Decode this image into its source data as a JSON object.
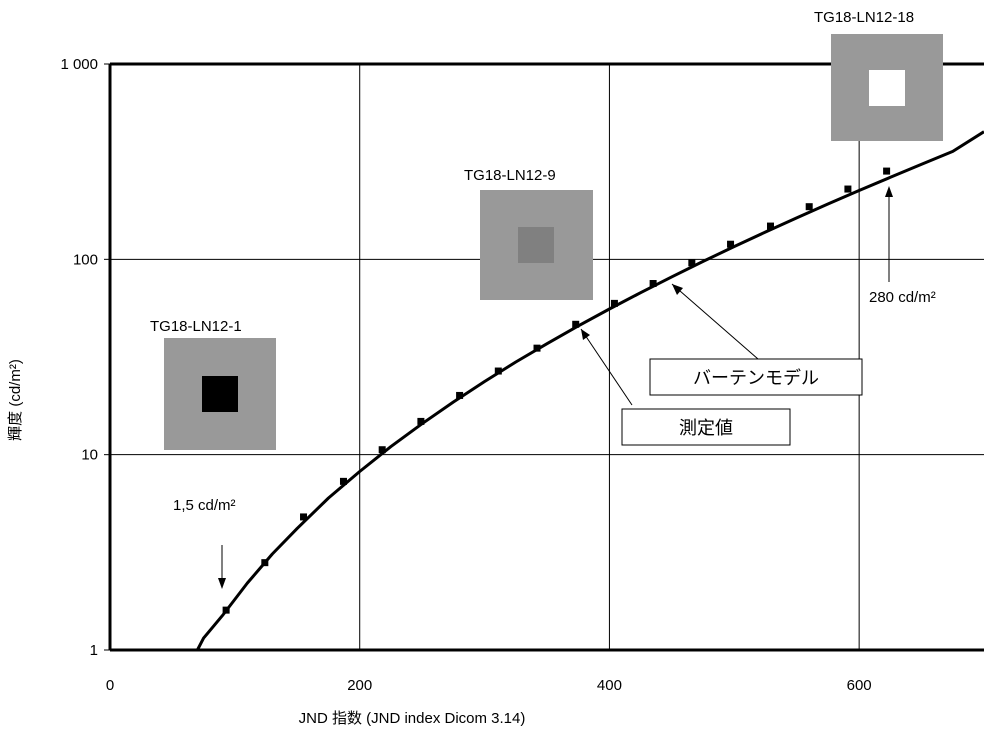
{
  "chart_data": {
    "type": "line",
    "xlabel": "JND 指数 (JND index Dicom 3.14)",
    "ylabel": "輝度  (cd/m²)",
    "xlim": [
      0,
      700
    ],
    "ylim": [
      1,
      1000
    ],
    "y_scale": "log",
    "grid": true,
    "x_ticks": [
      0,
      200,
      400,
      600
    ],
    "x_tick_labels": [
      "0",
      "200",
      "400",
      "600"
    ],
    "y_ticks": [
      1,
      10,
      100,
      1000
    ],
    "y_tick_labels": [
      "1",
      "10",
      "100",
      "1 000"
    ],
    "series": [
      {
        "name": "バーテンモデル",
        "style": "line",
        "x": [
          70,
          75,
          90,
          110,
          130,
          150,
          175,
          200,
          225,
          250,
          275,
          300,
          325,
          350,
          375,
          400,
          425,
          450,
          475,
          500,
          525,
          550,
          575,
          600,
          625,
          650,
          675,
          700
        ],
        "y": [
          1.0,
          1.15,
          1.5,
          2.2,
          3.1,
          4.2,
          6.0,
          8.2,
          11.0,
          14.4,
          18.6,
          23.7,
          29.8,
          37.0,
          45.6,
          55.7,
          67.5,
          81.4,
          97.6,
          116.3,
          138.0,
          163.0,
          192.0,
          225.0,
          263.0,
          307.0,
          357.0,
          450.0
        ]
      },
      {
        "name": "測定値",
        "style": "markers",
        "x": [
          93,
          124,
          155,
          187,
          218,
          249,
          280,
          311,
          342,
          373,
          404,
          435,
          466,
          497,
          529,
          560,
          591,
          622
        ],
        "y": [
          1.6,
          2.8,
          4.8,
          7.3,
          10.6,
          14.8,
          20.1,
          26.8,
          35.1,
          46.5,
          59.5,
          75.2,
          96.0,
          119.5,
          148.0,
          186.0,
          229.0,
          283.0
        ]
      }
    ],
    "annotations": {
      "patch_labels": [
        "TG18-LN12-1",
        "TG18-LN12-9",
        "TG18-LN12-18"
      ],
      "low_callout": "1,5 cd/m²",
      "high_callout": "280 cd/m²",
      "model_label": "バーテンモデル",
      "measured_label": "測定値"
    },
    "colors": {
      "line": "#000000",
      "grid": "#000000",
      "patch_background": "#999999",
      "patch_1_center": "#000000",
      "patch_9_center": "#808080",
      "patch_18_center": "#ffffff"
    }
  }
}
